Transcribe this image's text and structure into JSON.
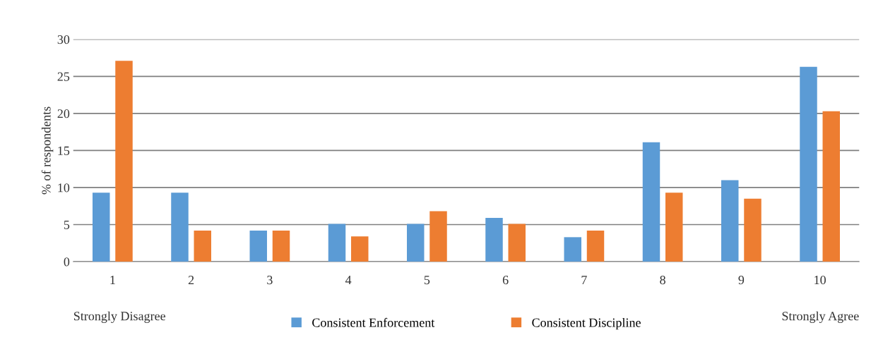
{
  "chart_data": {
    "type": "bar",
    "ylabel": "% of respondents",
    "categories": [
      "1",
      "2",
      "3",
      "4",
      "5",
      "6",
      "7",
      "8",
      "9",
      "10"
    ],
    "series": [
      {
        "name": "Consistent Enforcement",
        "color": "#5b9bd5",
        "values": [
          9.3,
          9.3,
          4.2,
          5.1,
          5.1,
          5.9,
          3.3,
          16.1,
          11.0,
          26.3
        ]
      },
      {
        "name": "Consistent Discipline",
        "color": "#ed7d31",
        "values": [
          27.1,
          4.2,
          4.2,
          3.4,
          6.8,
          5.1,
          4.2,
          9.3,
          8.5,
          20.3
        ]
      }
    ],
    "ylim": [
      0,
      30
    ],
    "yticks": [
      0,
      5,
      10,
      15,
      20,
      25,
      30
    ],
    "grid": "y",
    "legend": "bottom",
    "annotations": [
      "Strongly Disagree",
      "Strongly Agree"
    ]
  }
}
